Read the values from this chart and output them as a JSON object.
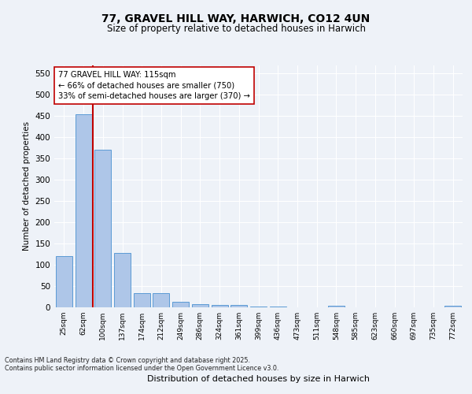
{
  "title1": "77, GRAVEL HILL WAY, HARWICH, CO12 4UN",
  "title2": "Size of property relative to detached houses in Harwich",
  "xlabel": "Distribution of detached houses by size in Harwich",
  "ylabel": "Number of detached properties",
  "categories": [
    "25sqm",
    "62sqm",
    "100sqm",
    "137sqm",
    "174sqm",
    "212sqm",
    "249sqm",
    "286sqm",
    "324sqm",
    "361sqm",
    "399sqm",
    "436sqm",
    "473sqm",
    "511sqm",
    "548sqm",
    "585sqm",
    "623sqm",
    "660sqm",
    "697sqm",
    "735sqm",
    "772sqm"
  ],
  "values": [
    120,
    455,
    370,
    127,
    33,
    33,
    13,
    8,
    5,
    5,
    1,
    2,
    0,
    0,
    3,
    0,
    0,
    0,
    0,
    0,
    3
  ],
  "bar_color": "#aec6e8",
  "bar_edge_color": "#5b9bd5",
  "vline_color": "#c00000",
  "annotation_line1": "77 GRAVEL HILL WAY: 115sqm",
  "annotation_line2": "← 66% of detached houses are smaller (750)",
  "annotation_line3": "33% of semi-detached houses are larger (370) →",
  "annotation_box_color": "#ffffff",
  "annotation_box_edge": "#c00000",
  "ylim": [
    0,
    570
  ],
  "yticks": [
    0,
    50,
    100,
    150,
    200,
    250,
    300,
    350,
    400,
    450,
    500,
    550
  ],
  "footer1": "Contains HM Land Registry data © Crown copyright and database right 2025.",
  "footer2": "Contains public sector information licensed under the Open Government Licence v3.0.",
  "bg_color": "#eef2f8",
  "grid_color": "#ffffff"
}
